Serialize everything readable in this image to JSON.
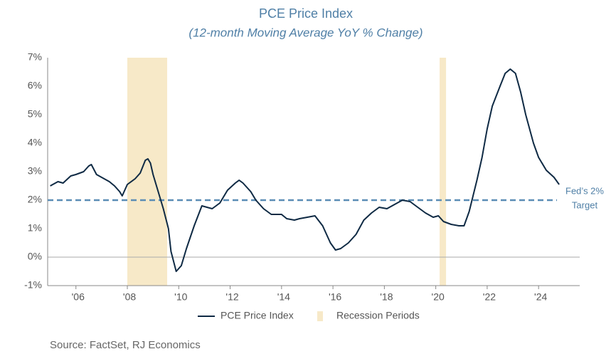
{
  "chart_data": {
    "type": "line",
    "title": "PCE Price Index",
    "subtitle": "(12-month Moving Average YoY % Change)",
    "source": "Source: FactSet, RJ Economics",
    "xlim": [
      2004.9,
      2025.6
    ],
    "xticks": [
      {
        "value": 2006,
        "label": "'06"
      },
      {
        "value": 2008,
        "label": "'08"
      },
      {
        "value": 2010,
        "label": "'10"
      },
      {
        "value": 2012,
        "label": "'12"
      },
      {
        "value": 2014,
        "label": "'14"
      },
      {
        "value": 2016,
        "label": "'16"
      },
      {
        "value": 2018,
        "label": "'18"
      },
      {
        "value": 2020,
        "label": "'20"
      },
      {
        "value": 2022,
        "label": "'22"
      },
      {
        "value": 2024,
        "label": "'24"
      }
    ],
    "ylim": [
      -1,
      7
    ],
    "yticks": [
      {
        "value": -1,
        "label": "-1%"
      },
      {
        "value": 0,
        "label": "0%"
      },
      {
        "value": 1,
        "label": "1%"
      },
      {
        "value": 2,
        "label": "2%"
      },
      {
        "value": 3,
        "label": "3%"
      },
      {
        "value": 4,
        "label": "4%"
      },
      {
        "value": 5,
        "label": "5%"
      },
      {
        "value": 6,
        "label": "6%"
      },
      {
        "value": 7,
        "label": "7%"
      }
    ],
    "x": [
      2005.0,
      2005.3,
      2005.5,
      2005.8,
      2006.0,
      2006.3,
      2006.5,
      2006.6,
      2006.8,
      2007.0,
      2007.3,
      2007.5,
      2007.7,
      2007.8,
      2008.0,
      2008.3,
      2008.5,
      2008.7,
      2008.8,
      2008.9,
      2009.0,
      2009.2,
      2009.4,
      2009.6,
      2009.7,
      2009.9,
      2010.1,
      2010.3,
      2010.6,
      2010.9,
      2011.1,
      2011.3,
      2011.6,
      2011.9,
      2012.2,
      2012.35,
      2012.5,
      2012.8,
      2013.0,
      2013.3,
      2013.6,
      2014.0,
      2014.2,
      2014.5,
      2014.7,
      2015.0,
      2015.3,
      2015.6,
      2015.9,
      2016.1,
      2016.3,
      2016.6,
      2016.9,
      2017.2,
      2017.5,
      2017.8,
      2018.1,
      2018.4,
      2018.7,
      2019.0,
      2019.3,
      2019.6,
      2019.9,
      2020.1,
      2020.3,
      2020.6,
      2020.9,
      2021.1,
      2021.3,
      2021.6,
      2021.8,
      2022.0,
      2022.2,
      2022.5,
      2022.7,
      2022.9,
      2023.1,
      2023.3,
      2023.5,
      2023.8,
      2024.0,
      2024.3,
      2024.6,
      2024.8
    ],
    "series": [
      {
        "name": "PCE Price Index",
        "color": "#0f2a44",
        "values": [
          2.5,
          2.65,
          2.6,
          2.85,
          2.9,
          3.0,
          3.2,
          3.25,
          2.9,
          2.8,
          2.65,
          2.5,
          2.3,
          2.15,
          2.55,
          2.75,
          2.95,
          3.4,
          3.45,
          3.3,
          2.9,
          2.3,
          1.7,
          1.0,
          0.2,
          -0.5,
          -0.3,
          0.3,
          1.1,
          1.8,
          1.75,
          1.7,
          1.9,
          2.35,
          2.6,
          2.7,
          2.6,
          2.3,
          2.0,
          1.7,
          1.5,
          1.5,
          1.35,
          1.3,
          1.35,
          1.4,
          1.45,
          1.1,
          0.5,
          0.25,
          0.3,
          0.5,
          0.8,
          1.3,
          1.55,
          1.75,
          1.7,
          1.85,
          2.0,
          1.95,
          1.75,
          1.55,
          1.4,
          1.45,
          1.25,
          1.15,
          1.1,
          1.1,
          1.6,
          2.7,
          3.5,
          4.5,
          5.3,
          6.0,
          6.45,
          6.6,
          6.45,
          5.8,
          5.0,
          4.0,
          3.5,
          3.05,
          2.8,
          2.55
        ]
      }
    ],
    "recession_name": "Recession Periods",
    "recession_color": "#f7e9c8",
    "recessions": [
      [
        2008.0,
        2009.55
      ],
      [
        2020.15,
        2020.4
      ]
    ],
    "target": {
      "value": 2,
      "label": [
        "Fed’s 2%",
        "Target"
      ],
      "color": "#5b8db5"
    }
  }
}
